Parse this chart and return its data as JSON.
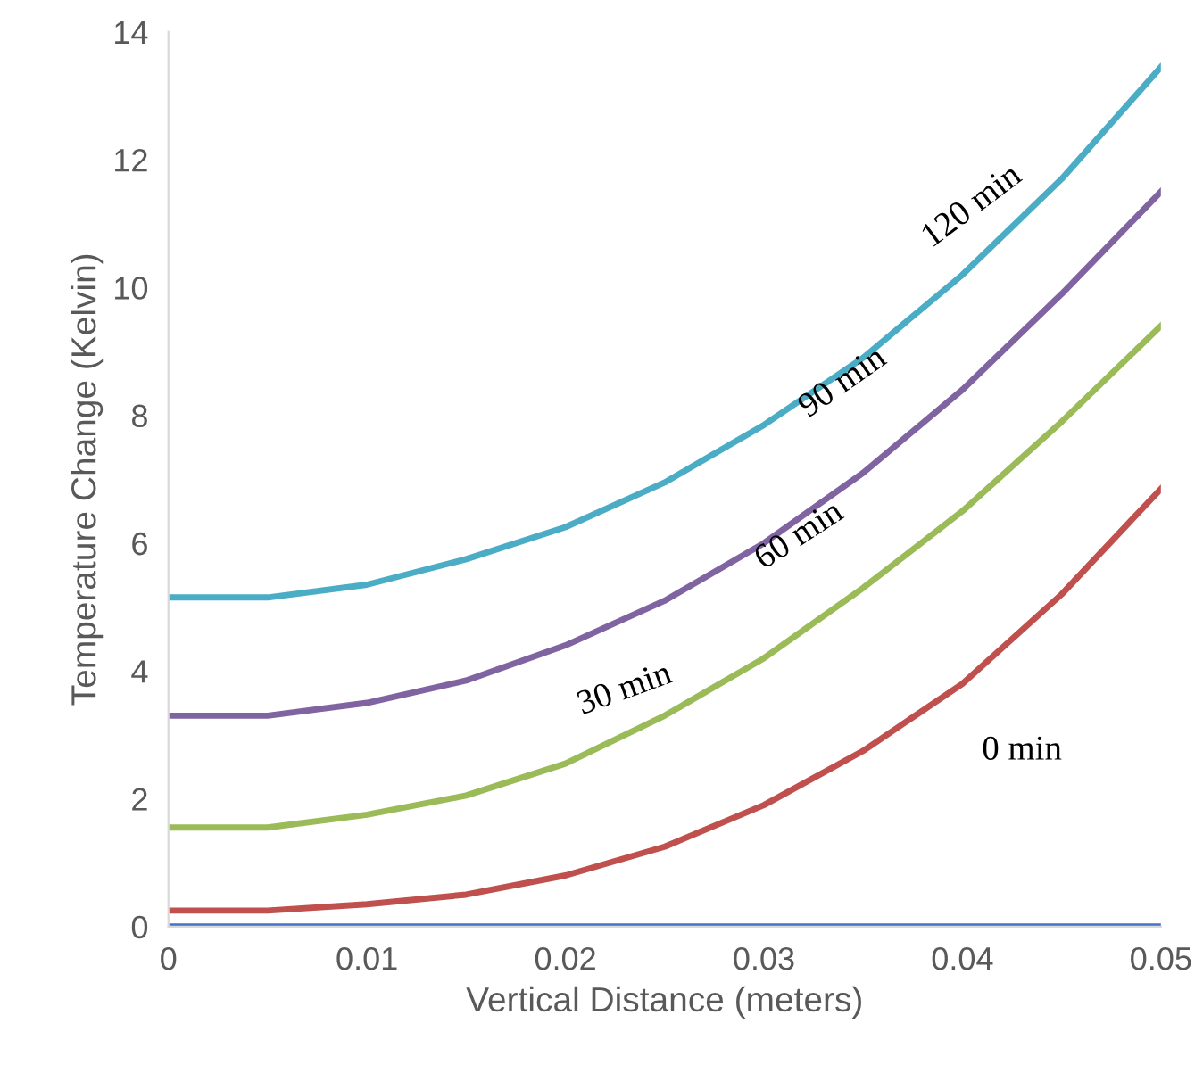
{
  "chart_data": {
    "type": "line",
    "xlabel": "Vertical Distance (meters)",
    "ylabel": "Temperature Change (Kelvin)",
    "x": [
      0,
      0.005,
      0.01,
      0.015,
      0.02,
      0.025,
      0.03,
      0.035,
      0.04,
      0.045,
      0.05
    ],
    "series": [
      {
        "color": "#4472c4",
        "values": [
          0,
          0,
          0,
          0,
          0,
          0,
          0,
          0,
          0,
          0,
          0
        ]
      },
      {
        "color": "#c0504d",
        "values": [
          0.25,
          0.25,
          0.35,
          0.5,
          0.8,
          1.25,
          1.9,
          2.75,
          3.8,
          5.2,
          6.85
        ]
      },
      {
        "color": "#9bbb59",
        "values": [
          1.55,
          1.55,
          1.75,
          2.05,
          2.55,
          3.3,
          4.2,
          5.3,
          6.5,
          7.9,
          9.4
        ]
      },
      {
        "color": "#8064a2",
        "values": [
          3.3,
          3.3,
          3.5,
          3.85,
          4.4,
          5.1,
          6.0,
          7.1,
          8.4,
          9.9,
          11.5
        ]
      },
      {
        "color": "#4bacc6",
        "values": [
          5.15,
          5.15,
          5.35,
          5.75,
          6.25,
          6.95,
          7.85,
          8.9,
          10.2,
          11.7,
          13.45
        ]
      }
    ],
    "annotations": [
      "0 min",
      "30 min",
      "60 min",
      "90 min",
      "120 min"
    ],
    "xlim": [
      0,
      0.05
    ],
    "xticks": [
      0,
      0.01,
      0.02,
      0.03,
      0.04,
      0.05
    ],
    "ylim": [
      0,
      14
    ],
    "yticks": [
      0,
      2,
      4,
      6,
      8,
      10,
      12,
      14
    ],
    "grid": false,
    "legend": false,
    "marker": "none",
    "line_style": "solid"
  }
}
